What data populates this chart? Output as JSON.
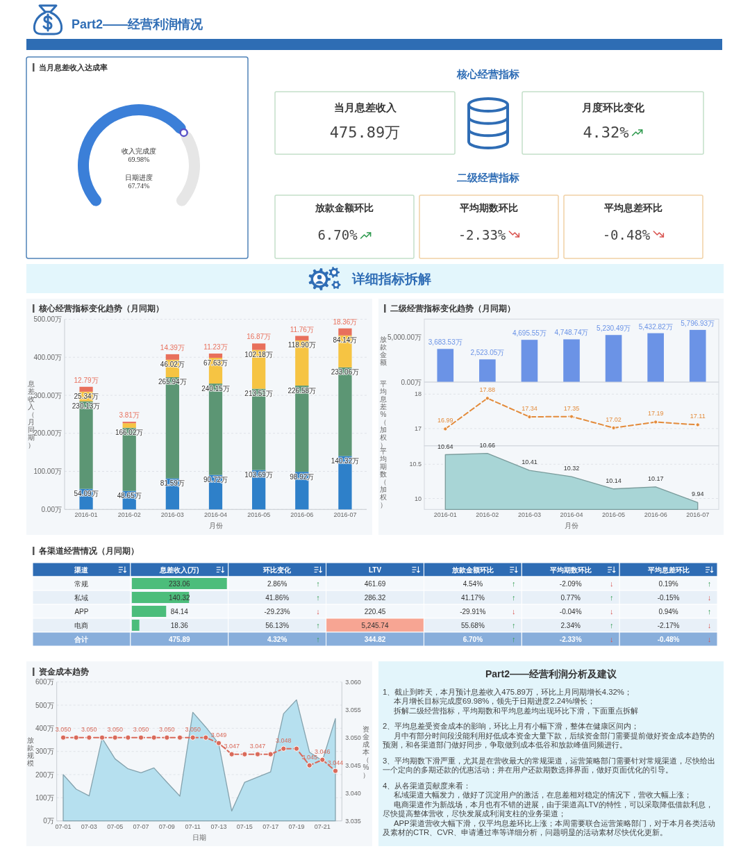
{
  "chart_data": [
    {
      "type": "other",
      "title": "Part2——经营利润情况"
    },
    {
      "type": "donut",
      "title": "当月息差收入达成率",
      "categories": [
        "收入完成度",
        null
      ],
      "values": [
        69.98,
        30.02
      ],
      "colors": [
        "#3b7fd8",
        "#e6e6e6"
      ],
      "value_labels": [
        "69.98%",
        null
      ],
      "annotations": [
        "日期进度\n67.74%"
      ]
    },
    {
      "type": "other",
      "title": "核心经营指标",
      "subtitle": "二级经营指标",
      "categories": [
        "当月息差收入",
        "月度环比变化",
        "放款金额环比",
        "平均期数环比",
        "平均息差环比"
      ],
      "values": [
        475.89,
        4.32,
        6.7,
        -2.33,
        -0.48
      ],
      "value_labels": [
        "475.89万",
        "4.32%",
        "6.70%",
        "-2.33%",
        "-0.48%"
      ]
    },
    {
      "type": "other",
      "title": "详细指标拆解"
    },
    {
      "type": "bar",
      "title": "核心经营指标变化趋势（月同期）",
      "xlabel": "月份",
      "ylabel": "息差收入（月同期）",
      "categories": [
        "2016-01",
        "2016-02",
        "2016-03",
        "2016-04",
        "2016-05",
        "2016-06",
        "2016-07"
      ],
      "stacked": true,
      "ylim": [
        0,
        500
      ],
      "yticks": [
        {
          "value": 0,
          "label": "0.00万"
        },
        {
          "value": 100,
          "label": "100.00万"
        },
        {
          "value": 200,
          "label": "200.00万"
        },
        {
          "value": 300,
          "label": "300.00万"
        },
        {
          "value": 400,
          "label": "400.00万"
        },
        {
          "value": 500,
          "label": "500.00万"
        }
      ],
      "grid": "y",
      "series": [
        {
          "color": "#2e80c9",
          "values": [
            54.09,
            48.65,
            81.59,
            90.72,
            103.69,
            98.92,
            140.32
          ],
          "value_labels": [
            "54.09万",
            "48.65万",
            "81.59万",
            "90.72万",
            "103.69万",
            "98.92万",
            "140.32万"
          ]
        },
        {
          "color": "#5c9674",
          "values": [
            230.13,
            166.02,
            265.94,
            240.15,
            213.51,
            226.58,
            233.06
          ],
          "value_labels": [
            "230.13万",
            "166.02万",
            "265.94万",
            "240.15万",
            "213.51万",
            "226.58万",
            "233.06万"
          ]
        },
        {
          "color": "#f6c443",
          "values": [
            25.34,
            12,
            46.02,
            67.63,
            102.18,
            118.9,
            84.14
          ],
          "value_labels": [
            "25.34万",
            null,
            "46.02万",
            "67.63万",
            "102.18万",
            "118.90万",
            "84.14万"
          ]
        },
        {
          "color": "#e8705c",
          "values": [
            12.79,
            3.81,
            14.39,
            11.23,
            16.87,
            11.76,
            18.36
          ],
          "value_labels": [
            "12.79万",
            "3.81万",
            "14.39万",
            "11.23万",
            "16.87万",
            "11.76万",
            "18.36万"
          ]
        }
      ]
    },
    {
      "type": "bar",
      "title": "二级经营指标变化趋势（月同期）",
      "ylabel": "放款金额",
      "categories": [
        "2016-01",
        "2016-02",
        "2016-03",
        "2016-04",
        "2016-05",
        "2016-06",
        "2016-07"
      ],
      "ylim": [
        0,
        7000
      ],
      "yticks": [
        {
          "value": 0,
          "label": "0.00万"
        },
        {
          "value": 5000,
          "label": "5,000.00万"
        }
      ],
      "tick_labels": "y",
      "series": [
        {
          "color": "#6b93e6",
          "values": [
            3683.53,
            2523.05,
            4695.55,
            4748.74,
            5230.49,
            5432.82,
            5796.93
          ],
          "value_labels": [
            "3,683.53万",
            "2,523.05万",
            "4,695.55万",
            "4,748.74万",
            "5,230.49万",
            "5,432.82万",
            "5,796.93万"
          ]
        }
      ]
    },
    {
      "type": "line",
      "ylabel": "平均息差%（加权）",
      "categories": [
        "2016-01",
        "2016-02",
        "2016-03",
        "2016-04",
        "2016-05",
        "2016-06",
        "2016-07"
      ],
      "ylim": [
        16.5,
        18.35
      ],
      "yticks": [
        17,
        18
      ],
      "grid": "y",
      "tick_labels": "y",
      "marker": "circle",
      "line_style": "dashed",
      "data_labels": true,
      "series": [
        {
          "color": "#e38b3b",
          "values": [
            16.99,
            17.88,
            17.34,
            17.35,
            17.02,
            17.19,
            17.11
          ]
        }
      ]
    },
    {
      "type": "area",
      "xlabel": "月份",
      "ylabel": "平均期数（加权）",
      "categories": [
        "2016-01",
        "2016-02",
        "2016-03",
        "2016-04",
        "2016-05",
        "2016-06",
        "2016-07"
      ],
      "ylim": [
        9.84,
        10.77
      ],
      "yticks": [
        10,
        10.5
      ],
      "grid": "y",
      "data_labels": true,
      "series": [
        {
          "color": "#a8d5d6",
          "values": [
            10.64,
            10.66,
            10.41,
            10.32,
            10.14,
            10.17,
            9.94
          ]
        }
      ]
    },
    {
      "type": "other",
      "title": "各渠道经营情况（月同期）",
      "ylabel": "渠道",
      "categories": [
        "息差收入(万)",
        "环比变化",
        "LTV",
        "放款金额环比",
        "平均期数环比",
        "平均息差环比"
      ],
      "y_categories": [
        "常规",
        "私域",
        "APP",
        "电商",
        "合计"
      ],
      "cell_labels": [
        [
          null,
          "2.86% ↑",
          "461.69",
          "4.54% ↑",
          "-2.09% ↓",
          "0.19% ↑"
        ],
        [
          null,
          "41.86% ↑",
          "286.32",
          "41.17% ↑",
          "0.77% ↑",
          "-0.15% ↓"
        ],
        [
          null,
          "-29.23% ↓",
          "220.45",
          "-29.91% ↓",
          "-0.04% ↓",
          "0.94% ↑"
        ],
        [
          null,
          "56.13% ↑",
          "5,245.74",
          "55.68% ↑",
          "2.34% ↑",
          "-2.17% ↓"
        ],
        [
          "475.89",
          "4.32% ↑",
          "344.82",
          "6.70% ↑",
          "-2.33% ↓",
          "-0.48% ↓"
        ]
      ],
      "colors": [
        [
          null,
          null,
          null,
          null,
          null,
          null
        ],
        [
          null,
          null,
          null,
          null,
          null,
          null
        ],
        [
          null,
          null,
          null,
          null,
          null,
          null
        ],
        [
          null,
          null,
          "#f7a593",
          null,
          null,
          null
        ],
        [
          null,
          null,
          null,
          null,
          null,
          null
        ]
      ]
    },
    {
      "type": "bar",
      "orientation": "horizontal",
      "categories": [
        null,
        null,
        null,
        null
      ],
      "values": [
        233.06,
        140.32,
        84.14,
        18.36
      ],
      "color": "#4cbd7b",
      "data_labels": true
    },
    {
      "type": "area",
      "title": "资金成本趋势",
      "xlabel": "日期",
      "ylabel": "放款规模",
      "y2label": "资金成本（%）",
      "categories": [
        "07-01",
        null,
        "07-03",
        null,
        "07-05",
        null,
        "07-07",
        null,
        "07-09",
        null,
        "07-11",
        null,
        "07-13",
        null,
        "07-15",
        null,
        "07-17",
        null,
        "07-19",
        null,
        "07-21",
        null
      ],
      "ylim": [
        0,
        600
      ],
      "yticks": [
        {
          "value": 0,
          "label": "0万"
        },
        {
          "value": 100,
          "label": "100万"
        },
        {
          "value": 200,
          "label": "200万"
        },
        {
          "value": 300,
          "label": "300万"
        },
        {
          "value": 400,
          "label": "400万"
        },
        {
          "value": 500,
          "label": "500万"
        },
        {
          "value": 600,
          "label": "600万"
        }
      ],
      "y2lim": [
        3.035,
        3.06
      ],
      "y2ticks": [
        {
          "value": 3.035,
          "label": "3.035"
        },
        {
          "value": 3.04,
          "label": "3.040"
        },
        {
          "value": 3.045,
          "label": "3.045"
        },
        {
          "value": 3.05,
          "label": "3.050"
        },
        {
          "value": 3.055,
          "label": "3.055"
        },
        {
          "value": 3.06,
          "label": "3.060"
        }
      ],
      "grid": "y",
      "series": [
        {
          "color": "#b6e0ef",
          "values": [
            200,
            137,
            108,
            357,
            268,
            225,
            208,
            229,
            167,
            107,
            469,
            405,
            333,
            43,
            167,
            189,
            212,
            463,
            523,
            297,
            260,
            442
          ]
        },
        {
          "type": "line",
          "axis": "y2",
          "marker": "circle",
          "line_style": "dashed",
          "color": "#d96a5a",
          "values": [
            3.05,
            3.05,
            3.05,
            3.05,
            3.05,
            3.05,
            3.05,
            3.05,
            3.05,
            3.05,
            3.05,
            3.05,
            3.049,
            3.047,
            3.047,
            3.047,
            3.047,
            3.048,
            3.048,
            3.045,
            3.046,
            3.044
          ],
          "value_labels": [
            "3.050",
            null,
            "3.050",
            null,
            "3.050",
            null,
            "3.050",
            null,
            "3.050",
            null,
            "3.050",
            null,
            "3.049",
            "3.047",
            null,
            "3.047",
            null,
            "3.048",
            null,
            "3.045",
            "3.046",
            "3.044"
          ]
        }
      ]
    },
    {
      "type": "other",
      "title": "Part2——经营利润分析及建议",
      "annotations": [
        "1、截止到昨天，本月预计息差收入475.89万，环比上月同期增长4.32%；",
        "本月增长目标完成度69.98%，领先于日期进度2.24%增长；",
        "拆解二级经营指标，平均期数和平均息差均出现环比下滑，下面重点拆解",
        "2、平均息差受资金成本的影响，环比上月有小幅下滑，整体在健康区间内；",
        "月中有部分时间段没能利用好低成本资金大量下款，后续资金部门需要提前做好资金成本趋势的预测，和各渠道部门做好同步，争取做到成本低谷和放款峰值同频进行。",
        "3、平均期数下滑严重，尤其是在营收最大的常规渠道，运营策略部门需要针对常规渠道，尽快给出一个定向的多期还款的优惠活动；并在用户还款期数选择界面，做好页面优化的引导。",
        "4、从各渠道贡献度来看：",
        "私域渠道大幅发力，做好了沉淀用户的激活，在息差相对稳定的情况下，营收大幅上涨；",
        "电商渠道作为新战场，本月也有不错的进展，由于渠道高LTV的特性，可以采取降低借款利息，尽快提高整体营收，尽快发展成利润支柱的业务渠道；",
        "APP渠道营收大幅下滑，仅平均息差环比上涨；本周需要联合运营策略部门，对于本月各类活动及素材的CTR、CVR、申请通过率等详细分析，问题明显的活动素材尽快优化更新。"
      ]
    }
  ]
}
